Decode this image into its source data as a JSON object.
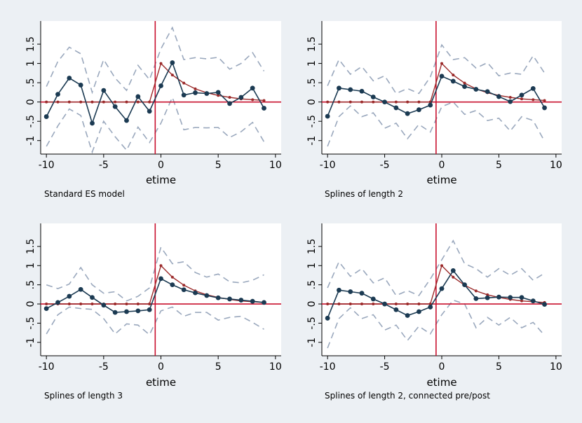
{
  "colors": {
    "background": "#ecf0f4",
    "plot_region": "#ffffff",
    "estimate": "#1b3a52",
    "true_effect": "#9b2a2a",
    "confidence_band": "#9aa8bd",
    "reference_lines": "#c8102e"
  },
  "chart_data": [
    {
      "type": "line",
      "caption": "Standard ES model",
      "xlabel": "etime",
      "xlim": [
        -10.5,
        10.5
      ],
      "ylim": [
        -1.35,
        2.1
      ],
      "x_ticks": [
        -10,
        -5,
        0,
        5,
        10
      ],
      "y_ticks": [
        -1,
        -0.5,
        0,
        0.5,
        1,
        1.5
      ],
      "y_tick_labels": [
        "-1",
        "-.5",
        "0",
        ".5",
        "1",
        "1.5"
      ],
      "grid": false,
      "legend": "none",
      "reference_lines": {
        "x": -0.5,
        "y": 0
      },
      "x": [
        -10,
        -9,
        -8,
        -7,
        -6,
        -5,
        -4,
        -3,
        -2,
        -1,
        0,
        1,
        2,
        3,
        4,
        5,
        6,
        7,
        8,
        9
      ],
      "series": [
        {
          "role": "estimate",
          "values": [
            -0.38,
            0.2,
            0.62,
            0.44,
            -0.55,
            0.3,
            -0.12,
            -0.48,
            0.14,
            -0.24,
            0.42,
            1.02,
            0.18,
            0.24,
            0.22,
            0.25,
            -0.04,
            0.12,
            0.36,
            -0.16
          ]
        },
        {
          "role": "true_effect",
          "values": [
            0,
            0,
            0,
            0,
            0,
            0,
            0,
            0,
            0,
            0,
            1,
            0.7,
            0.49,
            0.34,
            0.24,
            0.17,
            0.12,
            0.08,
            0.06,
            0.04
          ]
        },
        {
          "role": "ci_upper",
          "values": [
            0.4,
            1.05,
            1.42,
            1.25,
            0.25,
            1.1,
            0.62,
            0.3,
            0.95,
            0.58,
            1.38,
            1.93,
            1.1,
            1.15,
            1.12,
            1.16,
            0.85,
            1.0,
            1.28,
            0.8
          ]
        },
        {
          "role": "ci_lower",
          "values": [
            -1.15,
            -0.62,
            -0.18,
            -0.35,
            -1.3,
            -0.5,
            -0.9,
            -1.25,
            -0.65,
            -1.05,
            -0.55,
            0.12,
            -0.72,
            -0.66,
            -0.67,
            -0.66,
            -0.92,
            -0.77,
            -0.53,
            -1.03
          ]
        }
      ]
    },
    {
      "type": "line",
      "caption": "Splines of length 2",
      "xlabel": "etime",
      "xlim": [
        -10.5,
        10.5
      ],
      "ylim": [
        -1.35,
        2.1
      ],
      "x_ticks": [
        -10,
        -5,
        0,
        5,
        10
      ],
      "y_ticks": [
        -1,
        -0.5,
        0,
        0.5,
        1,
        1.5
      ],
      "y_tick_labels": [
        "-1",
        "-.5",
        "0",
        ".5",
        "1",
        "1.5"
      ],
      "grid": false,
      "legend": "none",
      "reference_lines": {
        "x": -0.5,
        "y": 0
      },
      "x": [
        -10,
        -9,
        -8,
        -7,
        -6,
        -5,
        -4,
        -3,
        -2,
        -1,
        0,
        1,
        2,
        3,
        4,
        5,
        6,
        7,
        8,
        9
      ],
      "series": [
        {
          "role": "estimate",
          "values": [
            -0.37,
            0.36,
            0.32,
            0.28,
            0.13,
            0.0,
            -0.15,
            -0.3,
            -0.2,
            -0.08,
            0.67,
            0.54,
            0.4,
            0.33,
            0.27,
            0.14,
            0.01,
            0.18,
            0.35,
            -0.15
          ]
        },
        {
          "role": "true_effect",
          "values": [
            0,
            0,
            0,
            0,
            0,
            0,
            0,
            0,
            0,
            0,
            1,
            0.7,
            0.49,
            0.34,
            0.24,
            0.17,
            0.12,
            0.08,
            0.06,
            0.04
          ]
        },
        {
          "role": "ci_upper",
          "values": [
            0.42,
            1.1,
            0.72,
            0.92,
            0.55,
            0.68,
            0.22,
            0.35,
            0.22,
            0.65,
            1.48,
            1.1,
            1.15,
            0.88,
            1.02,
            0.68,
            0.75,
            0.72,
            1.2,
            0.75
          ]
        },
        {
          "role": "ci_lower",
          "values": [
            -1.15,
            -0.38,
            -0.1,
            -0.38,
            -0.28,
            -0.68,
            -0.55,
            -0.95,
            -0.58,
            -0.78,
            -0.12,
            0.0,
            -0.32,
            -0.22,
            -0.48,
            -0.42,
            -0.75,
            -0.38,
            -0.48,
            -1.02
          ]
        }
      ]
    },
    {
      "type": "line",
      "caption": "Splines of length 3",
      "xlabel": "etime",
      "xlim": [
        -10.5,
        10.5
      ],
      "ylim": [
        -1.35,
        2.1
      ],
      "x_ticks": [
        -10,
        -5,
        0,
        5,
        10
      ],
      "y_ticks": [
        -1,
        -0.5,
        0,
        0.5,
        1,
        1.5
      ],
      "y_tick_labels": [
        "-1",
        "-.5",
        "0",
        ".5",
        "1",
        "1.5"
      ],
      "grid": false,
      "legend": "none",
      "reference_lines": {
        "x": -0.5,
        "y": 0
      },
      "x": [
        -10,
        -9,
        -8,
        -7,
        -6,
        -5,
        -4,
        -3,
        -2,
        -1,
        0,
        1,
        2,
        3,
        4,
        5,
        6,
        7,
        8,
        9
      ],
      "series": [
        {
          "role": "estimate",
          "values": [
            -0.12,
            0.04,
            0.2,
            0.38,
            0.17,
            -0.03,
            -0.22,
            -0.2,
            -0.18,
            -0.15,
            0.66,
            0.5,
            0.37,
            0.29,
            0.22,
            0.16,
            0.13,
            0.1,
            0.07,
            0.04
          ]
        },
        {
          "role": "true_effect",
          "values": [
            0,
            0,
            0,
            0,
            0,
            0,
            0,
            0,
            0,
            0,
            1,
            0.7,
            0.49,
            0.34,
            0.24,
            0.17,
            0.12,
            0.08,
            0.06,
            0.04
          ]
        },
        {
          "role": "ci_upper",
          "values": [
            0.5,
            0.4,
            0.52,
            0.95,
            0.5,
            0.28,
            0.32,
            0.08,
            0.2,
            0.42,
            1.48,
            1.05,
            1.1,
            0.82,
            0.7,
            0.78,
            0.58,
            0.55,
            0.62,
            0.76
          ]
        },
        {
          "role": "ci_lower",
          "values": [
            -0.78,
            -0.28,
            -0.08,
            -0.12,
            -0.14,
            -0.38,
            -0.78,
            -0.52,
            -0.55,
            -0.8,
            -0.18,
            -0.08,
            -0.32,
            -0.22,
            -0.22,
            -0.42,
            -0.35,
            -0.32,
            -0.48,
            -0.66
          ]
        }
      ]
    },
    {
      "type": "line",
      "caption": "Splines of length 2, connected pre/post",
      "xlabel": "etime",
      "xlim": [
        -10.5,
        10.5
      ],
      "ylim": [
        -1.35,
        2.1
      ],
      "x_ticks": [
        -10,
        -5,
        0,
        5,
        10
      ],
      "y_ticks": [
        -1,
        -0.5,
        0,
        0.5,
        1,
        1.5
      ],
      "y_tick_labels": [
        "-1",
        "-.5",
        "0",
        ".5",
        "1",
        "1.5"
      ],
      "grid": false,
      "legend": "none",
      "reference_lines": {
        "x": -0.5,
        "y": 0
      },
      "x": [
        -10,
        -9,
        -8,
        -7,
        -6,
        -5,
        -4,
        -3,
        -2,
        -1,
        0,
        1,
        2,
        3,
        4,
        5,
        6,
        7,
        8,
        9
      ],
      "series": [
        {
          "role": "estimate",
          "values": [
            -0.37,
            0.36,
            0.32,
            0.28,
            0.13,
            0.0,
            -0.15,
            -0.3,
            -0.2,
            -0.08,
            0.4,
            0.87,
            0.5,
            0.14,
            0.16,
            0.18,
            0.17,
            0.17,
            0.08,
            -0.01
          ]
        },
        {
          "role": "true_effect",
          "values": [
            0,
            0,
            0,
            0,
            0,
            0,
            0,
            0,
            0,
            0,
            1,
            0.7,
            0.49,
            0.34,
            0.24,
            0.17,
            0.12,
            0.08,
            0.06,
            0.04
          ]
        },
        {
          "role": "ci_upper",
          "values": [
            0.42,
            1.1,
            0.72,
            0.92,
            0.55,
            0.68,
            0.22,
            0.35,
            0.22,
            0.65,
            1.15,
            1.65,
            1.05,
            0.92,
            0.7,
            0.92,
            0.75,
            0.92,
            0.62,
            0.8
          ]
        },
        {
          "role": "ci_lower",
          "values": [
            -1.15,
            -0.38,
            -0.1,
            -0.38,
            -0.28,
            -0.68,
            -0.55,
            -0.95,
            -0.58,
            -0.78,
            -0.28,
            0.1,
            0.0,
            -0.62,
            -0.35,
            -0.55,
            -0.35,
            -0.62,
            -0.48,
            -0.82
          ]
        }
      ]
    }
  ]
}
